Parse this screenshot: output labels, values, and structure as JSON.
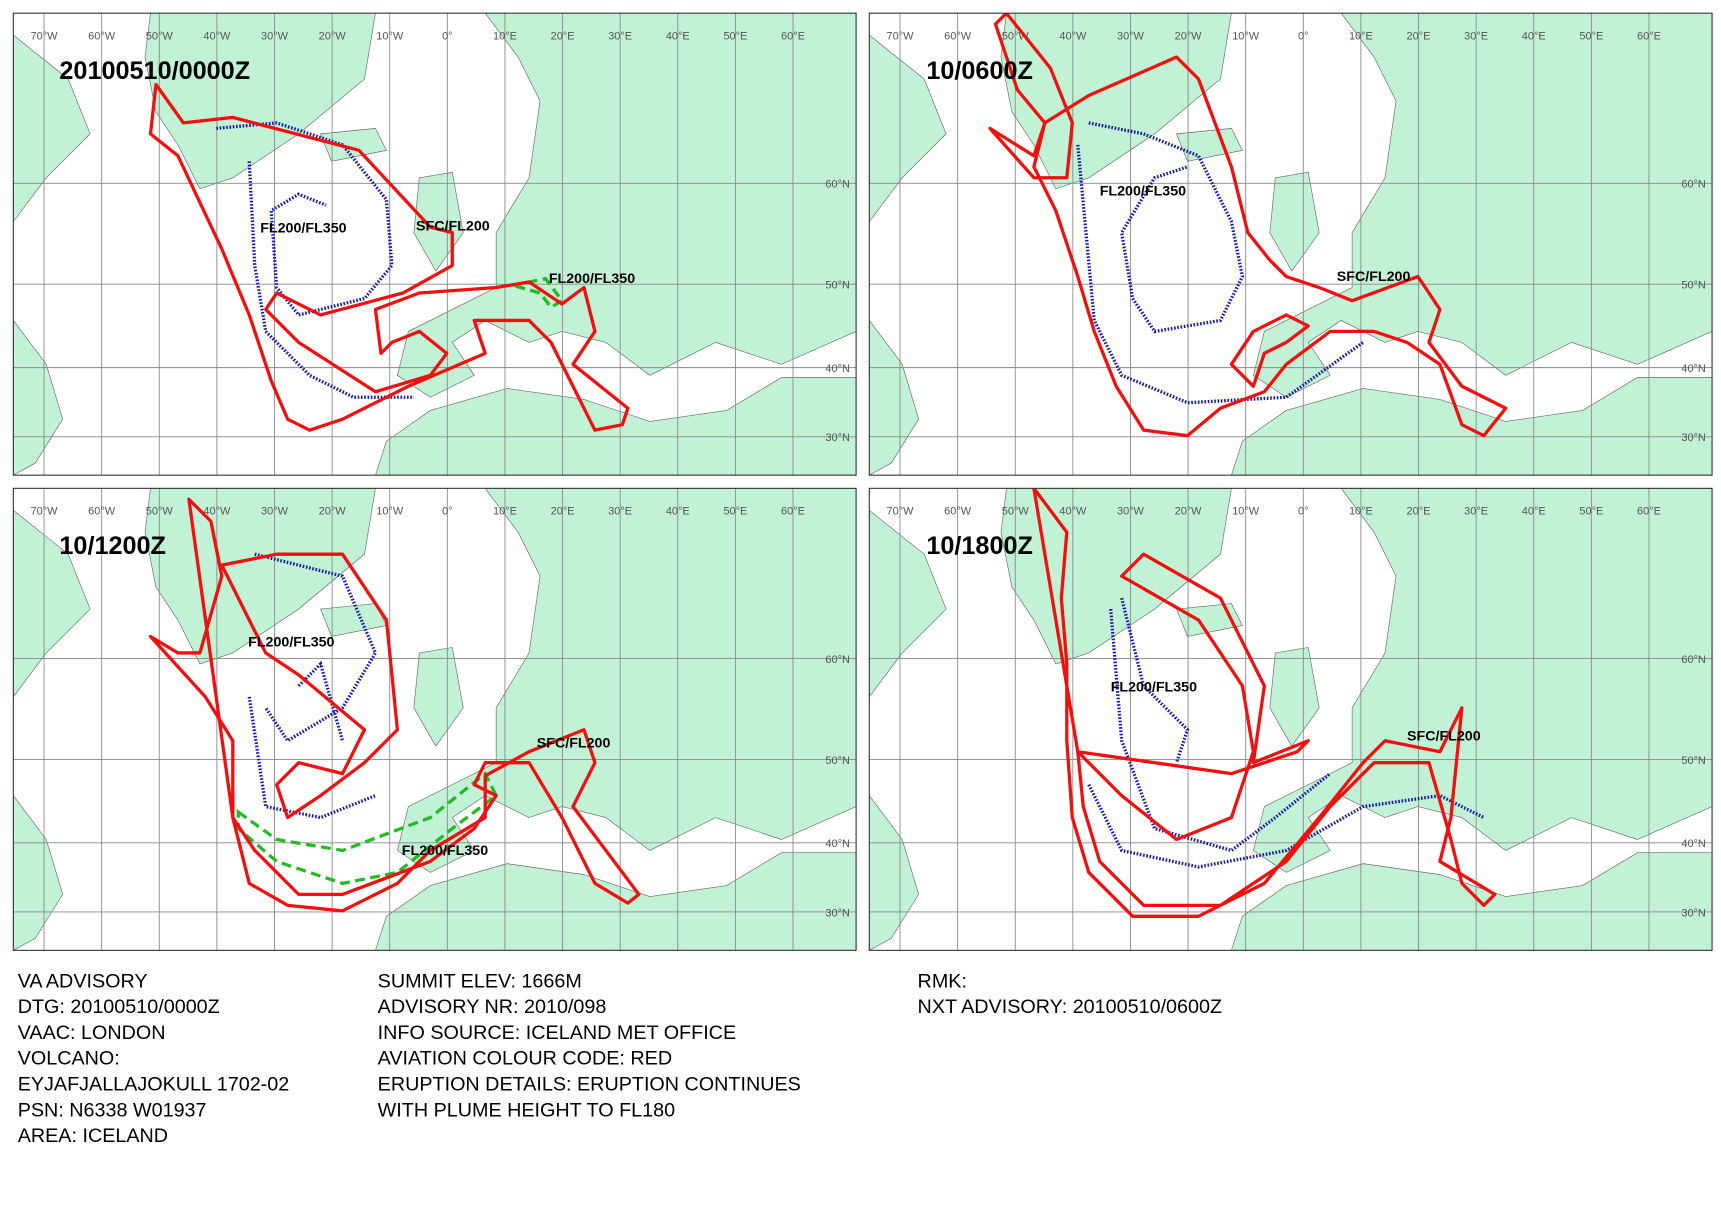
{
  "panels": [
    {
      "time": "20100510/0000Z",
      "labels": [
        "FL200/FL350",
        "SFC/FL200",
        "FL200/FL350"
      ]
    },
    {
      "time": "10/0600Z",
      "labels": [
        "FL200/FL350",
        "SFC/FL200"
      ]
    },
    {
      "time": "10/1200Z",
      "labels": [
        "FL200/FL350",
        "SFC/FL200",
        "FL200/FL350"
      ]
    },
    {
      "time": "10/1800Z",
      "labels": [
        "FL200/FL350",
        "SFC/FL200"
      ]
    }
  ],
  "lon_labels": [
    "70°W",
    "60°W",
    "50°W",
    "40°W",
    "30°W",
    "20°W",
    "10°W",
    "0°",
    "10°E",
    "20°E",
    "30°E",
    "40°E",
    "50°E",
    "60°E"
  ],
  "lat_labels": [
    "60°N",
    "50°N",
    "40°N",
    "30°N"
  ],
  "advisory": {
    "column1": [
      "VA ADVISORY",
      "DTG:  20100510/0000Z",
      "VAAC:  LONDON",
      "VOLCANO:",
      "EYJAFJALLAJOKULL 1702-02",
      "PSN:  N6338 W01937",
      "AREA:  ICELAND"
    ],
    "column2": [
      "SUMMIT ELEV:  1666M",
      "ADVISORY NR:  2010/098",
      "INFO SOURCE:  ICELAND MET OFFICE",
      "AVIATION COLOUR CODE:  RED",
      "ERUPTION DETAILS:  ERUPTION CONTINUES",
      "WITH PLUME HEIGHT TO FL180"
    ],
    "column3": [
      "RMK:",
      "NXT ADVISORY:  20100510/0600Z"
    ]
  }
}
